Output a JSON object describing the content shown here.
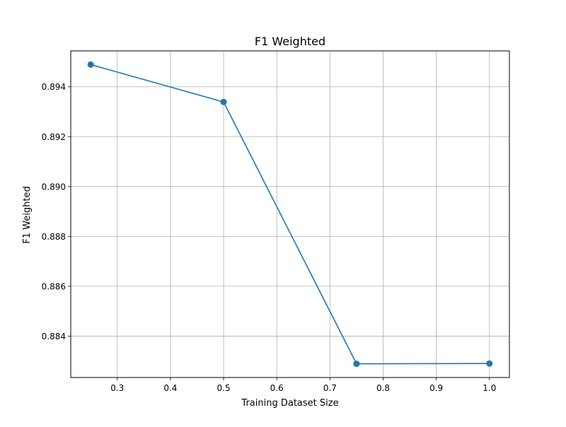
{
  "chart_data": {
    "type": "line",
    "title": "F1 Weighted",
    "xlabel": "Training Dataset Size",
    "ylabel": "F1 Weighted",
    "x": [
      0.25,
      0.5,
      0.75,
      1.0
    ],
    "series": [
      {
        "values": [
          0.89489,
          0.89339,
          0.88289,
          0.8829
        ]
      }
    ],
    "xlim": [
      0.2125,
      1.0375
    ],
    "ylim": [
      0.882339,
      0.895439
    ],
    "xticks": [
      0.3,
      0.4,
      0.5,
      0.6,
      0.7,
      0.8,
      0.9,
      1.0
    ],
    "xtick_labels": [
      "0.3",
      "0.4",
      "0.5",
      "0.6",
      "0.7",
      "0.8",
      "0.9",
      "1.0"
    ],
    "yticks": [
      0.884,
      0.886,
      0.888,
      0.89,
      0.892,
      0.894
    ],
    "ytick_labels": [
      "0.884",
      "0.886",
      "0.888",
      "0.890",
      "0.892",
      "0.894"
    ],
    "grid": true,
    "line_color": "#1f77b4",
    "marker": "circle"
  }
}
